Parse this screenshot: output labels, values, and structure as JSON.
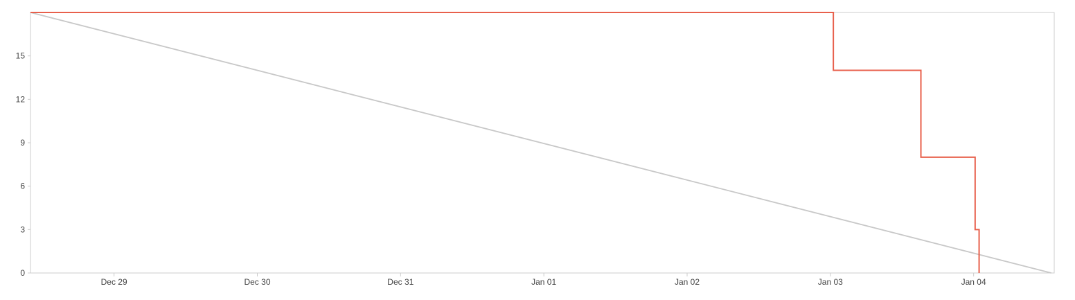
{
  "chart_data": {
    "type": "line",
    "title": "",
    "xlabel": "",
    "ylabel": "",
    "x_range": [
      "2021-12-28T10:00:00",
      "2022-01-04T13:30:00"
    ],
    "x_ticks": [
      {
        "date": "2021-12-29T00:00:00",
        "label": "Dec 29"
      },
      {
        "date": "2021-12-30T00:00:00",
        "label": "Dec 30"
      },
      {
        "date": "2021-12-31T00:00:00",
        "label": "Dec 31"
      },
      {
        "date": "2022-01-01T00:00:00",
        "label": "Jan 01"
      },
      {
        "date": "2022-01-02T00:00:00",
        "label": "Jan 02"
      },
      {
        "date": "2022-01-03T00:00:00",
        "label": "Jan 03"
      },
      {
        "date": "2022-01-04T00:00:00",
        "label": "Jan 04"
      }
    ],
    "ylim": [
      0,
      18
    ],
    "y_ticks": [
      0,
      3,
      6,
      9,
      12,
      15
    ],
    "grid": false,
    "series": [
      {
        "color": "#c8c8c8",
        "step": false,
        "points": [
          {
            "x": "2021-12-28T10:00:00",
            "y": 18
          },
          {
            "x": "2022-01-04T13:00:00",
            "y": 0
          }
        ]
      },
      {
        "color": "#e8604c",
        "step": true,
        "points": [
          {
            "x": "2021-12-28T10:00:00",
            "y": 18
          },
          {
            "x": "2022-01-03T00:30:00",
            "y": 14
          },
          {
            "x": "2022-01-03T15:10:00",
            "y": 8
          },
          {
            "x": "2022-01-04T00:15:00",
            "y": 3
          },
          {
            "x": "2022-01-04T00:55:00",
            "y": 0
          }
        ]
      }
    ]
  }
}
